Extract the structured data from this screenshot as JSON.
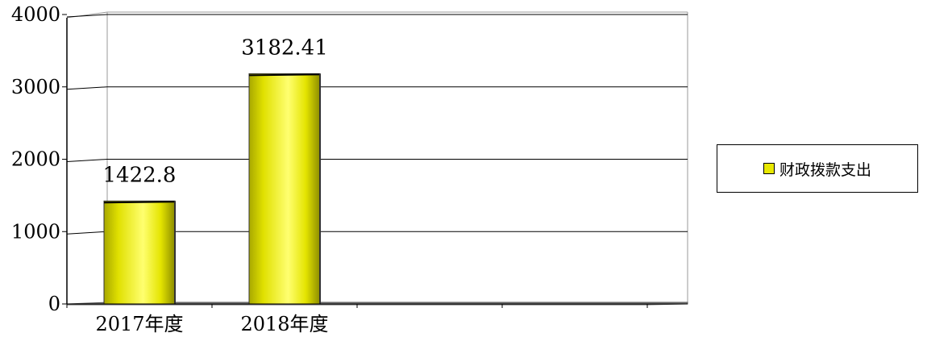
{
  "chart_data": {
    "type": "bar",
    "categories": [
      "2017年度",
      "2018年度",
      "",
      "",
      ""
    ],
    "series": [
      {
        "name": "财政拨款支出",
        "values": [
          1422.8,
          3182.41,
          null,
          null,
          null
        ],
        "data_labels": [
          "1422.8",
          "3182.41",
          "",
          "",
          ""
        ],
        "color": "#e8e800"
      }
    ],
    "ylim": [
      0,
      4000
    ],
    "yticks": [
      "0",
      "1000",
      "2000",
      "3000",
      "4000"
    ],
    "grid": true,
    "legend": "right"
  }
}
